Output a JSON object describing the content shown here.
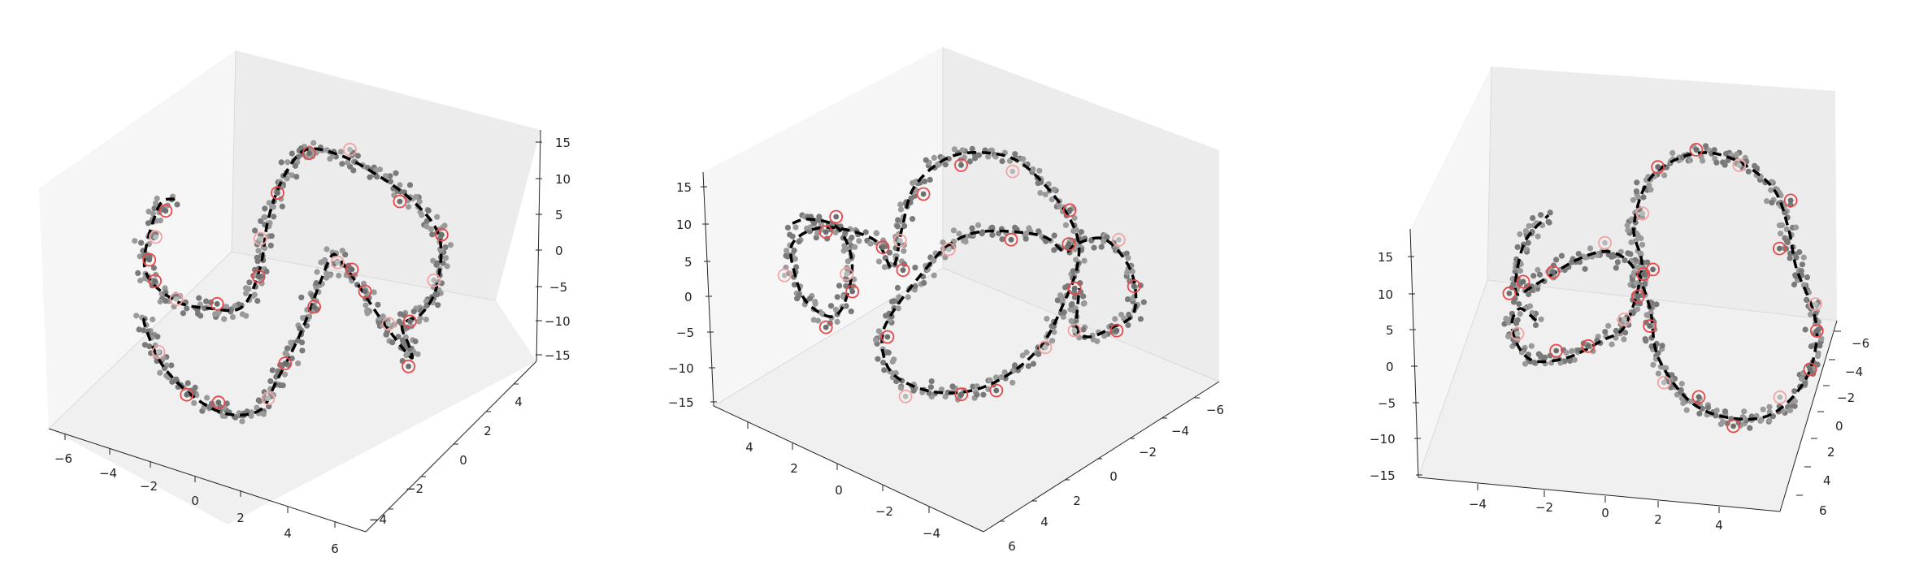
{
  "chart_data": [
    {
      "type": "scatter",
      "title": "",
      "view": "3d-view-1",
      "x_ticks": [
        "−6",
        "−4",
        "−2",
        "0",
        "2",
        "4",
        "6"
      ],
      "y_ticks": [
        "−4",
        "−2",
        "0",
        "2",
        "4"
      ],
      "z_ticks": [
        "15",
        "10",
        "5",
        "0",
        "−5",
        "−10",
        "−15"
      ],
      "xlim": [
        -6.5,
        6.5
      ],
      "ylim": [
        -5,
        5
      ],
      "zlim": [
        -16,
        16
      ],
      "series": [
        {
          "kind": "points",
          "color": "#777777"
        },
        {
          "kind": "curve",
          "style": "dashed",
          "color": "#000000"
        },
        {
          "kind": "markers",
          "style": "circle-outline",
          "color": "#e8474a"
        }
      ]
    },
    {
      "type": "scatter",
      "title": "",
      "view": "3d-view-2",
      "x_ticks": [
        "6",
        "4",
        "2",
        "0",
        "−2",
        "−4",
        "−6"
      ],
      "y_ticks": [
        "4",
        "2",
        "0",
        "−2",
        "−4"
      ],
      "z_ticks": [
        "15",
        "10",
        "5",
        "0",
        "−5",
        "−10",
        "−15"
      ],
      "xlim": [
        -6.5,
        6.5
      ],
      "ylim": [
        -5,
        5
      ],
      "zlim": [
        -16,
        16
      ],
      "series": [
        {
          "kind": "points",
          "color": "#777777"
        },
        {
          "kind": "curve",
          "style": "dashed",
          "color": "#000000"
        },
        {
          "kind": "markers",
          "style": "circle-outline",
          "color": "#e8474a"
        }
      ]
    },
    {
      "type": "scatter",
      "title": "",
      "view": "3d-view-3",
      "x_ticks": [
        "6",
        "4",
        "2",
        "0",
        "−2",
        "−4",
        "−6"
      ],
      "y_ticks": [
        "−4",
        "−2",
        "0",
        "2",
        "4"
      ],
      "z_ticks": [
        "15",
        "10",
        "5",
        "0",
        "−5",
        "−10",
        "−15"
      ],
      "xlim": [
        -6.5,
        6.5
      ],
      "ylim": [
        -5,
        5
      ],
      "zlim": [
        -16,
        16
      ],
      "series": [
        {
          "kind": "points",
          "color": "#777777"
        },
        {
          "kind": "curve",
          "style": "dashed",
          "color": "#000000"
        },
        {
          "kind": "markers",
          "style": "circle-outline",
          "color": "#e8474a"
        }
      ]
    }
  ]
}
